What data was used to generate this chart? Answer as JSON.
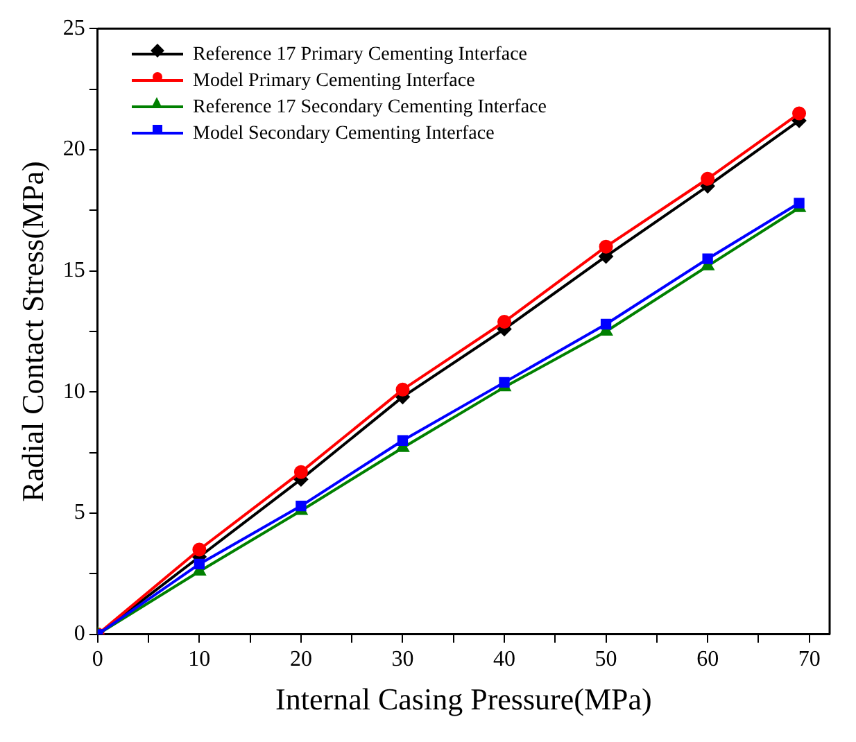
{
  "chart_data": {
    "type": "line",
    "xlabel": "Internal Casing Pressure(MPa)",
    "ylabel": "Radial Contact Stress(MPa)",
    "x": [
      0,
      10,
      20,
      30,
      40,
      50,
      60,
      69
    ],
    "series": [
      {
        "name": "Reference 17 Primary Cementing Interface",
        "color": "#000000",
        "marker": "diamond",
        "values": [
          0,
          3.2,
          6.4,
          9.8,
          12.6,
          15.6,
          18.5,
          21.2
        ]
      },
      {
        "name": "Model Primary Cementing Interface",
        "color": "#ff0000",
        "marker": "circle",
        "values": [
          0,
          3.5,
          6.7,
          10.1,
          12.9,
          16.0,
          18.8,
          21.5
        ]
      },
      {
        "name": "Reference 17 Secondary Cementing Interface",
        "color": "#008000",
        "marker": "triangle",
        "values": [
          0,
          2.6,
          5.1,
          7.7,
          10.2,
          12.5,
          15.2,
          17.6
        ]
      },
      {
        "name": "Model Secondary Cementing Interface",
        "color": "#0000ff",
        "marker": "square",
        "values": [
          0,
          2.9,
          5.3,
          8.0,
          10.4,
          12.8,
          15.5,
          17.8
        ]
      }
    ],
    "xlim": [
      0,
      72
    ],
    "ylim": [
      0,
      25
    ],
    "xticks": [
      0,
      {
        "value": 5,
        "label": null
      },
      10,
      {
        "value": 15,
        "label": null
      },
      20,
      {
        "value": 25,
        "label": null
      },
      30,
      {
        "value": 35,
        "label": null
      },
      40,
      {
        "value": 45,
        "label": null
      },
      50,
      {
        "value": 55,
        "label": null
      },
      60,
      {
        "value": 65,
        "label": null
      },
      70
    ],
    "yticks": [
      0,
      {
        "value": 2.5,
        "label": null
      },
      5,
      {
        "value": 7.5,
        "label": null
      },
      10,
      {
        "value": 12.5,
        "label": null
      },
      15,
      {
        "value": 17.5,
        "label": null
      },
      20,
      {
        "value": 22.5,
        "label": null
      },
      25
    ],
    "grid": false,
    "legend": "top left",
    "line_style": "solid"
  }
}
